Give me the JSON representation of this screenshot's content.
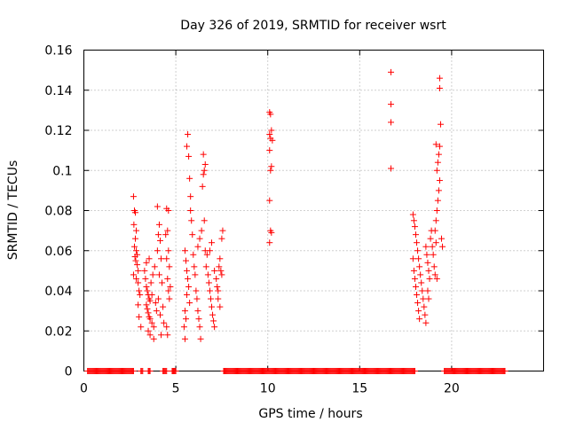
{
  "chart_data": {
    "type": "scatter",
    "title": "Day 326 of 2019, SRMTID for receiver wsrt",
    "xlabel": "GPS time / hours",
    "ylabel": "SRMTID / TECUs",
    "xlim": [
      0,
      25
    ],
    "ylim": [
      0,
      0.16
    ],
    "x_ticks": [
      0,
      5,
      10,
      15,
      20
    ],
    "x_tick_labels": [
      "0",
      "5",
      "10",
      "15",
      "20"
    ],
    "y_ticks": [
      0,
      0.02,
      0.04,
      0.06,
      0.08,
      0.1,
      0.12,
      0.14,
      0.16
    ],
    "y_tick_labels": [
      "0",
      "0.02",
      "0.04",
      "0.06",
      "0.08",
      "0.1",
      "0.12",
      "0.14",
      "0.16"
    ],
    "grid": true,
    "marker": "+",
    "color": "#ff0000",
    "series": [
      {
        "name": "SRMTID",
        "points": [
          [
            2.7,
            0.087
          ],
          [
            2.75,
            0.08
          ],
          [
            2.8,
            0.079
          ],
          [
            2.72,
            0.073
          ],
          [
            2.85,
            0.07
          ],
          [
            2.8,
            0.066
          ],
          [
            2.75,
            0.062
          ],
          [
            2.85,
            0.06
          ],
          [
            2.9,
            0.058
          ],
          [
            2.78,
            0.057
          ],
          [
            2.82,
            0.055
          ],
          [
            2.9,
            0.053
          ],
          [
            2.95,
            0.05
          ],
          [
            2.7,
            0.048
          ],
          [
            2.85,
            0.046
          ],
          [
            2.95,
            0.044
          ],
          [
            3.0,
            0.04
          ],
          [
            3.05,
            0.038
          ],
          [
            2.95,
            0.033
          ],
          [
            3.0,
            0.027
          ],
          [
            3.1,
            0.022
          ],
          [
            3.3,
            0.05
          ],
          [
            3.35,
            0.046
          ],
          [
            3.4,
            0.042
          ],
          [
            3.45,
            0.04
          ],
          [
            3.5,
            0.038
          ],
          [
            3.55,
            0.036
          ],
          [
            3.6,
            0.035
          ],
          [
            3.4,
            0.033
          ],
          [
            3.45,
            0.031
          ],
          [
            3.5,
            0.029
          ],
          [
            3.55,
            0.027
          ],
          [
            3.6,
            0.026
          ],
          [
            3.7,
            0.024
          ],
          [
            3.8,
            0.022
          ],
          [
            3.5,
            0.02
          ],
          [
            3.65,
            0.044
          ],
          [
            3.75,
            0.048
          ],
          [
            3.85,
            0.052
          ],
          [
            3.7,
            0.038
          ],
          [
            3.9,
            0.034
          ],
          [
            3.95,
            0.03
          ],
          [
            3.6,
            0.018
          ],
          [
            3.8,
            0.016
          ],
          [
            3.4,
            0.054
          ],
          [
            3.55,
            0.056
          ],
          [
            4.0,
            0.082
          ],
          [
            4.1,
            0.073
          ],
          [
            4.05,
            0.068
          ],
          [
            4.15,
            0.065
          ],
          [
            4.0,
            0.06
          ],
          [
            4.2,
            0.056
          ],
          [
            4.1,
            0.048
          ],
          [
            4.25,
            0.044
          ],
          [
            4.05,
            0.036
          ],
          [
            4.3,
            0.032
          ],
          [
            4.15,
            0.028
          ],
          [
            4.35,
            0.024
          ],
          [
            4.2,
            0.018
          ],
          [
            4.5,
            0.081
          ],
          [
            4.6,
            0.08
          ],
          [
            4.55,
            0.07
          ],
          [
            4.45,
            0.068
          ],
          [
            4.6,
            0.06
          ],
          [
            4.5,
            0.056
          ],
          [
            4.65,
            0.052
          ],
          [
            4.55,
            0.046
          ],
          [
            4.7,
            0.042
          ],
          [
            4.6,
            0.04
          ],
          [
            4.65,
            0.036
          ],
          [
            4.5,
            0.022
          ],
          [
            4.55,
            0.018
          ],
          [
            5.5,
            0.06
          ],
          [
            5.55,
            0.055
          ],
          [
            5.6,
            0.05
          ],
          [
            5.65,
            0.046
          ],
          [
            5.7,
            0.042
          ],
          [
            5.6,
            0.038
          ],
          [
            5.75,
            0.034
          ],
          [
            5.5,
            0.03
          ],
          [
            5.55,
            0.026
          ],
          [
            5.45,
            0.022
          ],
          [
            5.5,
            0.016
          ],
          [
            5.6,
            0.112
          ],
          [
            5.65,
            0.118
          ],
          [
            5.7,
            0.107
          ],
          [
            5.75,
            0.096
          ],
          [
            5.8,
            0.087
          ],
          [
            5.8,
            0.08
          ],
          [
            5.85,
            0.075
          ],
          [
            5.9,
            0.068
          ],
          [
            5.95,
            0.058
          ],
          [
            6.0,
            0.052
          ],
          [
            6.05,
            0.048
          ],
          [
            6.1,
            0.04
          ],
          [
            6.15,
            0.036
          ],
          [
            6.2,
            0.03
          ],
          [
            6.25,
            0.026
          ],
          [
            6.3,
            0.022
          ],
          [
            6.35,
            0.016
          ],
          [
            6.2,
            0.062
          ],
          [
            6.3,
            0.066
          ],
          [
            6.4,
            0.07
          ],
          [
            6.45,
            0.092
          ],
          [
            6.5,
            0.098
          ],
          [
            6.55,
            0.1
          ],
          [
            6.6,
            0.103
          ],
          [
            6.5,
            0.108
          ],
          [
            6.55,
            0.075
          ],
          [
            6.6,
            0.06
          ],
          [
            6.7,
            0.058
          ],
          [
            6.65,
            0.052
          ],
          [
            6.75,
            0.048
          ],
          [
            6.8,
            0.044
          ],
          [
            6.85,
            0.04
          ],
          [
            6.9,
            0.036
          ],
          [
            6.95,
            0.032
          ],
          [
            7.0,
            0.028
          ],
          [
            7.05,
            0.025
          ],
          [
            7.1,
            0.022
          ],
          [
            6.85,
            0.06
          ],
          [
            6.95,
            0.064
          ],
          [
            7.1,
            0.05
          ],
          [
            7.2,
            0.046
          ],
          [
            7.25,
            0.042
          ],
          [
            7.3,
            0.04
          ],
          [
            7.35,
            0.052
          ],
          [
            7.4,
            0.056
          ],
          [
            7.45,
            0.05
          ],
          [
            7.5,
            0.048
          ],
          [
            7.5,
            0.066
          ],
          [
            7.55,
            0.07
          ],
          [
            7.4,
            0.032
          ],
          [
            7.3,
            0.036
          ],
          [
            10.1,
            0.129
          ],
          [
            10.15,
            0.128
          ],
          [
            10.2,
            0.12
          ],
          [
            10.1,
            0.118
          ],
          [
            10.15,
            0.116
          ],
          [
            10.25,
            0.115
          ],
          [
            10.1,
            0.11
          ],
          [
            10.2,
            0.102
          ],
          [
            10.15,
            0.1
          ],
          [
            10.1,
            0.085
          ],
          [
            10.15,
            0.07
          ],
          [
            10.2,
            0.069
          ],
          [
            10.1,
            0.064
          ],
          [
            16.7,
            0.149
          ],
          [
            16.7,
            0.133
          ],
          [
            16.7,
            0.124
          ],
          [
            16.7,
            0.101
          ],
          [
            17.9,
            0.078
          ],
          [
            17.95,
            0.075
          ],
          [
            18.0,
            0.072
          ],
          [
            18.05,
            0.068
          ],
          [
            18.1,
            0.064
          ],
          [
            18.15,
            0.06
          ],
          [
            18.2,
            0.056
          ],
          [
            18.25,
            0.052
          ],
          [
            18.3,
            0.048
          ],
          [
            18.35,
            0.044
          ],
          [
            18.4,
            0.04
          ],
          [
            18.45,
            0.036
          ],
          [
            18.5,
            0.032
          ],
          [
            18.55,
            0.028
          ],
          [
            18.6,
            0.024
          ],
          [
            17.9,
            0.056
          ],
          [
            17.95,
            0.05
          ],
          [
            18.0,
            0.046
          ],
          [
            18.05,
            0.042
          ],
          [
            18.1,
            0.038
          ],
          [
            18.15,
            0.034
          ],
          [
            18.2,
            0.03
          ],
          [
            18.25,
            0.026
          ],
          [
            18.6,
            0.062
          ],
          [
            18.65,
            0.058
          ],
          [
            18.7,
            0.054
          ],
          [
            18.75,
            0.05
          ],
          [
            18.8,
            0.046
          ],
          [
            18.85,
            0.066
          ],
          [
            18.9,
            0.07
          ],
          [
            18.95,
            0.062
          ],
          [
            19.0,
            0.058
          ],
          [
            19.05,
            0.052
          ],
          [
            19.1,
            0.048
          ],
          [
            19.15,
            0.075
          ],
          [
            19.2,
            0.08
          ],
          [
            19.25,
            0.085
          ],
          [
            19.3,
            0.09
          ],
          [
            19.35,
            0.095
          ],
          [
            19.2,
            0.1
          ],
          [
            19.25,
            0.104
          ],
          [
            19.3,
            0.108
          ],
          [
            19.35,
            0.112
          ],
          [
            19.15,
            0.113
          ],
          [
            19.4,
            0.123
          ],
          [
            19.35,
            0.141
          ],
          [
            19.35,
            0.146
          ],
          [
            19.1,
            0.07
          ],
          [
            19.15,
            0.064
          ],
          [
            19.45,
            0.066
          ],
          [
            19.5,
            0.062
          ],
          [
            19.2,
            0.046
          ],
          [
            18.7,
            0.04
          ],
          [
            18.75,
            0.036
          ]
        ],
        "zero_band": [
          [
            0.2,
            2.7
          ],
          [
            3.1,
            3.2
          ],
          [
            3.5,
            3.6
          ],
          [
            4.3,
            4.5
          ],
          [
            4.8,
            5.0
          ],
          [
            7.6,
            18.0
          ],
          [
            19.6,
            22.9
          ]
        ]
      }
    ]
  }
}
